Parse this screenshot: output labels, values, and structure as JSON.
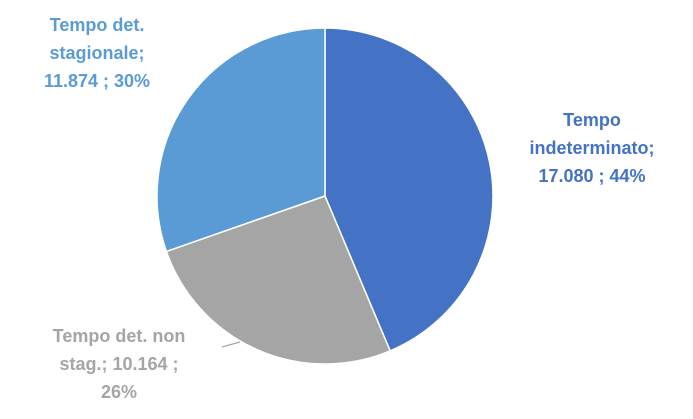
{
  "chart_data": {
    "type": "pie",
    "title": "",
    "slices": [
      {
        "name": "Tempo indeterminato",
        "value": 17080,
        "percent": 44,
        "color": "#4472c4",
        "label_lines": [
          "Tempo",
          "indeterminato;",
          "17.080 ; 44%"
        ]
      },
      {
        "name": "Tempo det. non stag.",
        "value": 10164,
        "percent": 26,
        "color": "#a5a5a5",
        "label_lines": [
          "Tempo det. non",
          "stag.;  10.164 ;",
          "26%"
        ]
      },
      {
        "name": "Tempo det. stagionale",
        "value": 11874,
        "percent": 30,
        "color": "#5b9bd5",
        "label_lines": [
          "Tempo  det.",
          "stagionale;",
          "11.874 ; 30%"
        ]
      }
    ],
    "start_angle_deg": 0,
    "direction": "clockwise",
    "legend": "none",
    "data_labels": "outside"
  }
}
